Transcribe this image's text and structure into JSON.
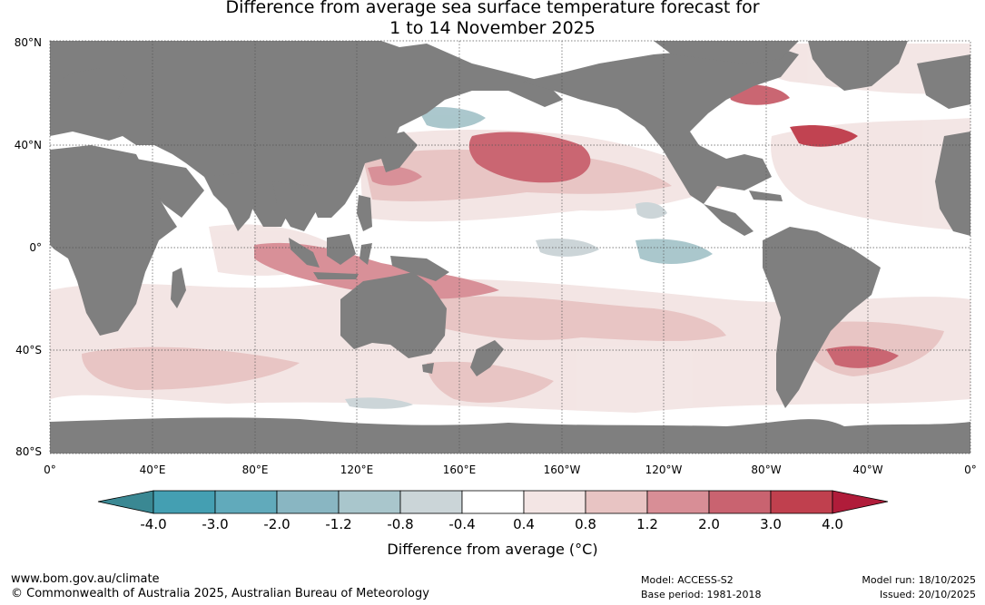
{
  "title": {
    "line1": "Difference from average sea surface temperature forecast for",
    "line2": "1 to 14 November 2025"
  },
  "map": {
    "lat_labels": [
      "80°N",
      "40°N",
      "0°",
      "40°S",
      "80°S"
    ],
    "lon_labels": [
      "0°",
      "40°E",
      "80°E",
      "120°E",
      "160°E",
      "160°W",
      "120°W",
      "80°W",
      "40°W",
      "0°"
    ],
    "colors": {
      "land": "#7f7f7f",
      "ocean_neutral": "#ffffff",
      "warm_0_4": "#f3e5e4",
      "warm_0_8": "#e8c4c3",
      "warm_1_2": "#d88e96",
      "warm_2_0": "#c96370",
      "warm_3_0": "#c0404e",
      "cool_0_4": "#cbd5d8",
      "cool_0_8": "#a9c6cc"
    }
  },
  "colorbar": {
    "ticks": [
      "-4.0",
      "-3.0",
      "-2.0",
      "-1.2",
      "-0.8",
      "-0.4",
      "0.4",
      "0.8",
      "1.2",
      "2.0",
      "3.0",
      "4.0"
    ],
    "colors": [
      "#449fb2",
      "#61aabb",
      "#89b6c2",
      "#a9c6cc",
      "#cbd5d8",
      "#ffffff",
      "#f3e5e4",
      "#e8c4c3",
      "#d88e96",
      "#c96370",
      "#c0404e"
    ],
    "under_color": "#3a8893",
    "over_color": "#b01c3a",
    "label": "Difference from average (°C)"
  },
  "footer": {
    "url": "www.bom.gov.au/climate",
    "copyright": "© Commonwealth of Australia 2025, Australian Bureau of Meteorology",
    "model": "Model: ACCESS-S2",
    "base_period": "Base period: 1981-2018",
    "model_run": "Model run: 18/10/2025",
    "issued": "Issued: 20/10/2025"
  }
}
